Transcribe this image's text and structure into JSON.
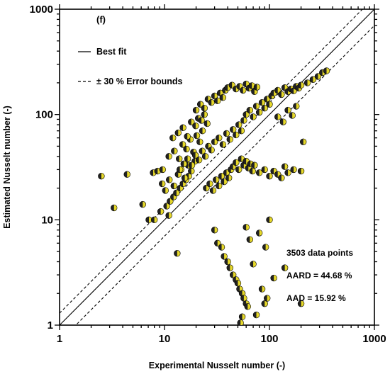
{
  "chart_data": {
    "type": "scatter",
    "panel_label": "(f)",
    "xlabel": "Experimental Nusselt number (-)",
    "ylabel": "Estimated Nusselt number (-)",
    "xscale": "log",
    "yscale": "log",
    "xlim": [
      1,
      1000
    ],
    "ylim": [
      1,
      1000
    ],
    "x_ticks": [
      1,
      10,
      100,
      1000
    ],
    "y_ticks": [
      1,
      10,
      100,
      1000
    ],
    "x_tick_labels": [
      "1",
      "10",
      "100",
      "1000"
    ],
    "y_tick_labels": [
      "1",
      "10",
      "100",
      "1000"
    ],
    "grid": false,
    "legend_position": "top-left",
    "legend": [
      {
        "label": "Best fit",
        "style": "solid"
      },
      {
        "label": "± 30 % Error bounds",
        "style": "dashed"
      }
    ],
    "lines": [
      {
        "name": "Best fit",
        "slope": 1.0,
        "style": "solid"
      },
      {
        "name": "+30 % bound",
        "slope": 1.3,
        "style": "dashed"
      },
      {
        "name": "-30 % bound",
        "slope": 0.7,
        "style": "dashed"
      }
    ],
    "annotations": {
      "data_points": "3503 data points",
      "aard": "AARD = 44.68 %",
      "aad": "AAD = 15.92 %"
    },
    "marker": {
      "fill": "#e6d82a",
      "shade": "#222222",
      "edge": "#000000"
    },
    "series": [
      {
        "name": "",
        "points": [
          [
            2.5,
            26
          ],
          [
            3.3,
            13
          ],
          [
            4.4,
            27
          ],
          [
            6.2,
            14
          ],
          [
            7.1,
            10
          ],
          [
            7.8,
            28
          ],
          [
            8.6,
            29
          ],
          [
            9.6,
            30
          ],
          [
            11,
            11
          ],
          [
            13.2,
            4.8
          ],
          [
            8,
            10
          ],
          [
            9.2,
            12
          ],
          [
            10.5,
            13.5
          ],
          [
            11.3,
            15
          ],
          [
            12.2,
            16.5
          ],
          [
            13,
            18
          ],
          [
            14.1,
            20
          ],
          [
            15,
            22
          ],
          [
            16,
            24
          ],
          [
            17,
            26
          ],
          [
            9.5,
            22
          ],
          [
            10.2,
            19
          ],
          [
            11.1,
            24
          ],
          [
            12.3,
            21
          ],
          [
            13.5,
            27
          ],
          [
            14.4,
            30
          ],
          [
            15.6,
            25
          ],
          [
            16.8,
            33
          ],
          [
            18,
            29
          ],
          [
            19.5,
            36
          ],
          [
            11,
            40
          ],
          [
            12.4,
            45
          ],
          [
            13.8,
            38
          ],
          [
            14.9,
            52
          ],
          [
            16.2,
            47
          ],
          [
            17.6,
            58
          ],
          [
            18.9,
            44
          ],
          [
            20.3,
            63
          ],
          [
            21.7,
            55
          ],
          [
            23,
            70
          ],
          [
            12,
            60
          ],
          [
            13.5,
            67
          ],
          [
            15,
            75
          ],
          [
            16.5,
            62
          ],
          [
            18,
            85
          ],
          [
            19.8,
            78
          ],
          [
            21,
            92
          ],
          [
            22.5,
            88
          ],
          [
            24,
            100
          ],
          [
            25.5,
            82
          ],
          [
            14,
            30
          ],
          [
            15.3,
            34
          ],
          [
            16.6,
            38
          ],
          [
            18.2,
            33
          ],
          [
            19.7,
            41
          ],
          [
            21.3,
            37
          ],
          [
            22.9,
            45
          ],
          [
            24.5,
            40
          ],
          [
            26.2,
            50
          ],
          [
            28,
            46
          ],
          [
            20,
            110
          ],
          [
            22,
            125
          ],
          [
            24,
            115
          ],
          [
            26,
            140
          ],
          [
            28,
            130
          ],
          [
            30,
            150
          ],
          [
            32,
            135
          ],
          [
            34,
            160
          ],
          [
            36,
            145
          ],
          [
            38,
            170
          ],
          [
            25,
            20
          ],
          [
            27,
            22
          ],
          [
            29,
            19
          ],
          [
            31,
            24
          ],
          [
            33,
            21
          ],
          [
            35,
            26
          ],
          [
            37,
            23
          ],
          [
            39,
            28
          ],
          [
            41,
            25
          ],
          [
            43,
            30
          ],
          [
            30,
            55
          ],
          [
            33,
            60
          ],
          [
            36,
            52
          ],
          [
            39,
            66
          ],
          [
            42,
            58
          ],
          [
            45,
            72
          ],
          [
            48,
            64
          ],
          [
            51,
            80
          ],
          [
            54,
            70
          ],
          [
            57,
            88
          ],
          [
            40,
            180
          ],
          [
            44,
            190
          ],
          [
            48,
            175
          ],
          [
            52,
            185
          ],
          [
            56,
            170
          ],
          [
            60,
            195
          ],
          [
            64,
            178
          ],
          [
            68,
            188
          ],
          [
            72,
            165
          ],
          [
            76,
            182
          ],
          [
            45,
            32
          ],
          [
            48,
            35
          ],
          [
            51,
            30
          ],
          [
            54,
            38
          ],
          [
            57,
            33
          ],
          [
            60,
            36
          ],
          [
            63,
            31
          ],
          [
            66,
            34
          ],
          [
            69,
            29
          ],
          [
            72,
            33
          ],
          [
            60,
            100
          ],
          [
            65,
            110
          ],
          [
            70,
            95
          ],
          [
            75,
            120
          ],
          [
            80,
            105
          ],
          [
            85,
            130
          ],
          [
            90,
            115
          ],
          [
            95,
            140
          ],
          [
            100,
            125
          ],
          [
            105,
            150
          ],
          [
            80,
            28
          ],
          [
            90,
            30
          ],
          [
            100,
            26
          ],
          [
            110,
            29
          ],
          [
            120,
            27
          ],
          [
            130,
            25
          ],
          [
            150,
            28
          ],
          [
            170,
            30
          ],
          [
            200,
            29
          ],
          [
            140,
            32
          ],
          [
            110,
            160
          ],
          [
            120,
            170
          ],
          [
            130,
            155
          ],
          [
            140,
            180
          ],
          [
            150,
            165
          ],
          [
            160,
            175
          ],
          [
            170,
            168
          ],
          [
            180,
            185
          ],
          [
            190,
            178
          ],
          [
            200,
            190
          ],
          [
            230,
            200
          ],
          [
            260,
            215
          ],
          [
            290,
            230
          ],
          [
            320,
            250
          ],
          [
            350,
            260
          ],
          [
            120,
            95
          ],
          [
            135,
            85
          ],
          [
            150,
            110
          ],
          [
            165,
            98
          ],
          [
            180,
            120
          ],
          [
            210,
            55
          ],
          [
            30,
            8
          ],
          [
            32,
            6
          ],
          [
            35,
            5.5
          ],
          [
            37,
            4.5
          ],
          [
            40,
            4
          ],
          [
            42,
            3.5
          ],
          [
            45,
            3
          ],
          [
            48,
            2.7
          ],
          [
            50,
            2.5
          ],
          [
            52,
            2.2
          ],
          [
            55,
            2
          ],
          [
            57,
            1.8
          ],
          [
            60,
            1.6
          ],
          [
            62,
            1.5
          ],
          [
            55,
            1.2
          ],
          [
            53,
            1.05
          ],
          [
            75,
            1.25
          ],
          [
            90,
            1.6
          ],
          [
            95,
            1.8
          ],
          [
            100,
            10
          ],
          [
            200,
            1.6
          ],
          [
            85,
            2.2
          ],
          [
            70,
            3.8
          ],
          [
            65,
            6.5
          ],
          [
            80,
            7.5
          ],
          [
            60,
            8.5
          ],
          [
            92,
            5.5
          ],
          [
            140,
            3.5
          ],
          [
            110,
            2.8
          ]
        ]
      }
    ]
  }
}
